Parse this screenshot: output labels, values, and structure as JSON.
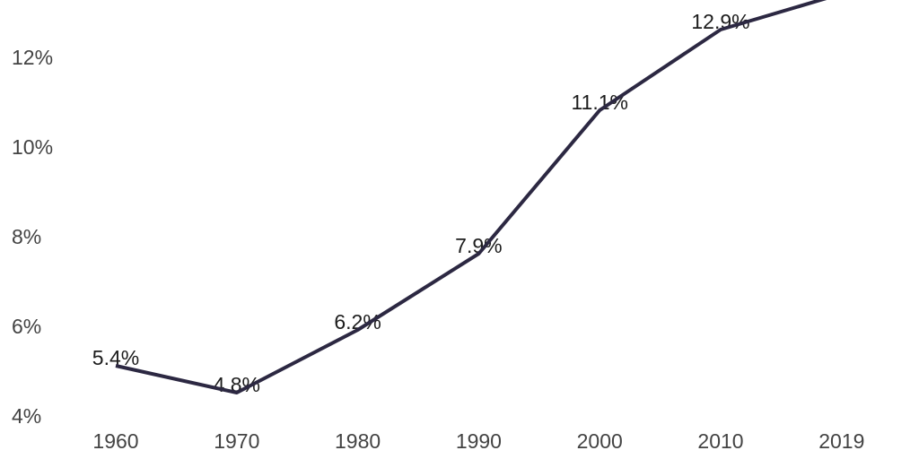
{
  "chart_data": {
    "type": "line",
    "title": "",
    "xlabel": "",
    "ylabel": "",
    "categories": [
      "1960",
      "1970",
      "1980",
      "1990",
      "2000",
      "2010",
      "2019"
    ],
    "values": [
      5.4,
      4.8,
      6.2,
      7.9,
      11.1,
      12.9,
      13.7
    ],
    "point_labels": [
      "5.4%",
      "4.8%",
      "6.2%",
      "7.9%",
      "11.1%",
      "12.9%",
      ""
    ],
    "y_tick_labels": [
      "4%",
      "6%",
      "8%",
      "10%",
      "12%"
    ],
    "y_tick_values": [
      4,
      6,
      8,
      10,
      12
    ],
    "ylim_visible": [
      3.3,
      13.6
    ],
    "grid": false,
    "legend": false,
    "note": "Final segment toward 2019 runs past the top edge of the image; its value label is not visible (value estimated from line trajectory).",
    "colors": {
      "line": "#2c2842",
      "point_label": "#1c1c1c",
      "axis_label": "#434343",
      "background": "#ffffff"
    }
  }
}
